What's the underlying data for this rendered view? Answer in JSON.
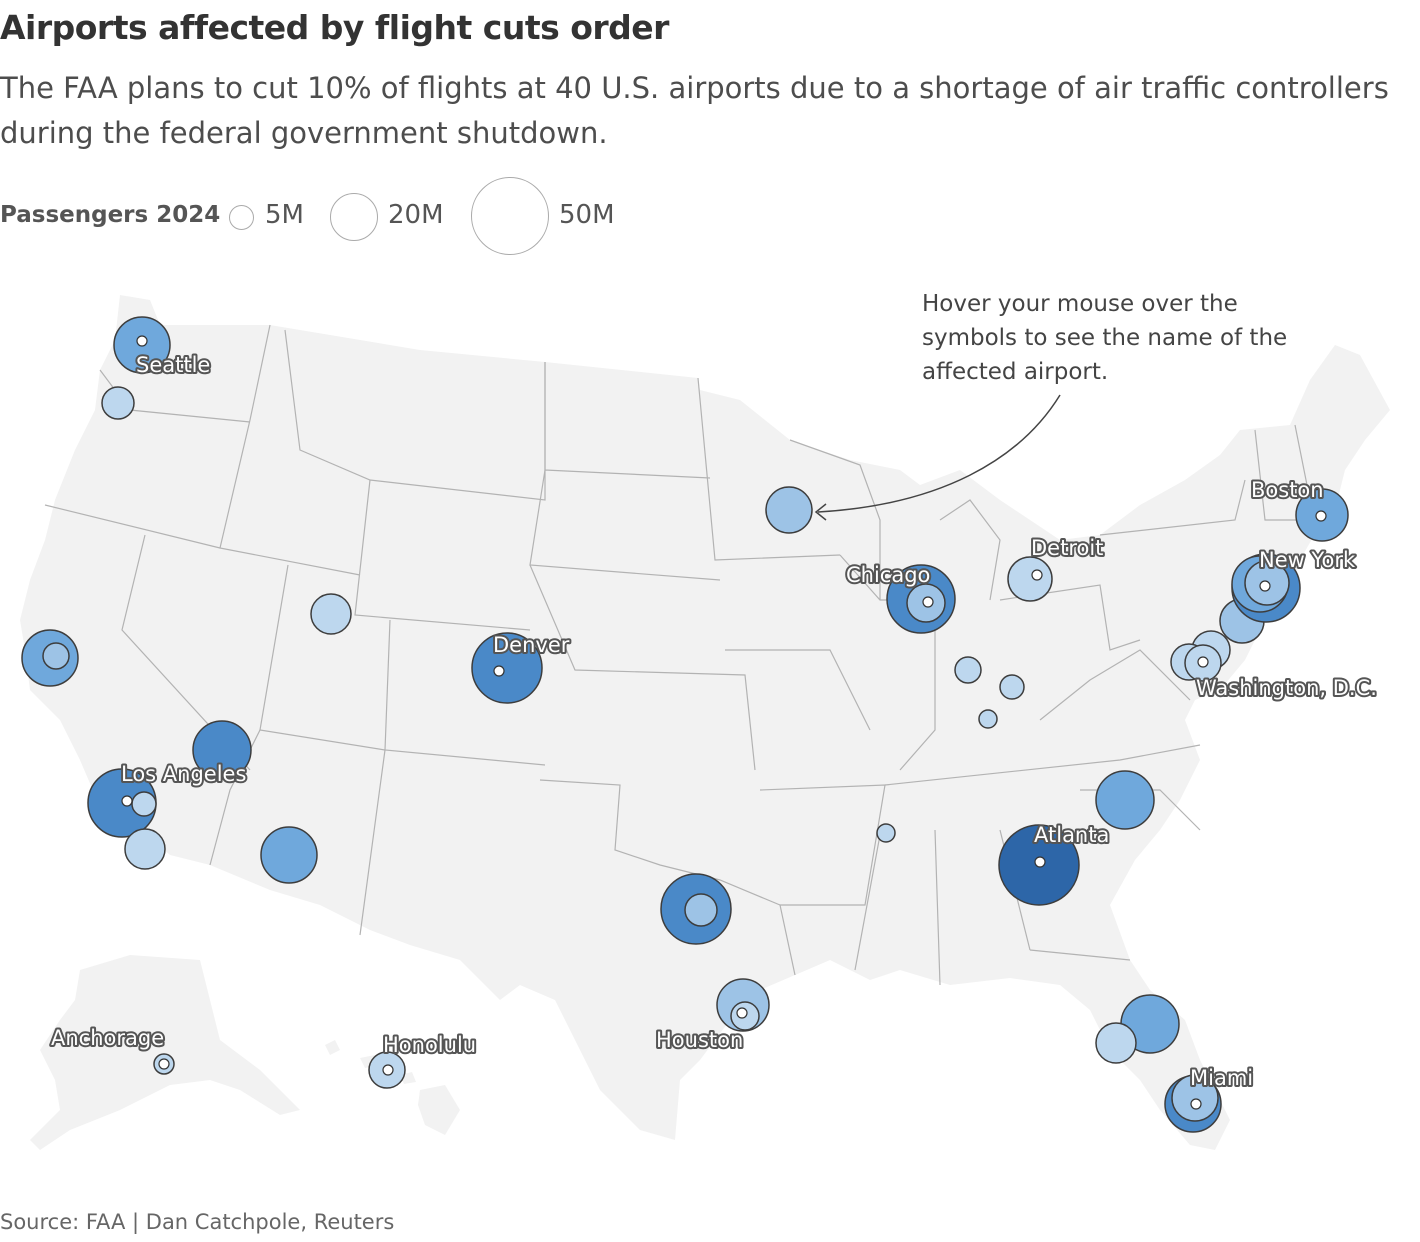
{
  "header": {
    "title": "Airports affected by flight cuts order",
    "subtitle": "The FAA plans to cut 10% of flights at 40 U.S. airports due to a shortage of air traffic controllers during the federal government shutdown."
  },
  "legend": {
    "title": "Passengers 2024",
    "items": [
      {
        "label": "5M",
        "value_millions": 5
      },
      {
        "label": "20M",
        "value_millions": 20
      },
      {
        "label": "50M",
        "value_millions": 50
      }
    ]
  },
  "annotation": {
    "text": "Hover your mouse over the symbols to see the name of the affected airport."
  },
  "source": "Source: FAA | Dan Catchpole, Reuters",
  "colors": {
    "land": "#f2f2f2",
    "border": "#b3b3b3",
    "level1": "#bdd7ee",
    "level2": "#9dc3e6",
    "level3": "#6fa8dc",
    "level4": "#4a89c8",
    "level5": "#2d66a8",
    "stroke": "#3d3d3d"
  },
  "city_labels": [
    {
      "name": "Seattle"
    },
    {
      "name": "Boston"
    },
    {
      "name": "New York"
    },
    {
      "name": "Detroit"
    },
    {
      "name": "Chicago"
    },
    {
      "name": "Denver"
    },
    {
      "name": "Washington, D.C."
    },
    {
      "name": "Los Angeles"
    },
    {
      "name": "Atlanta"
    },
    {
      "name": "Houston"
    },
    {
      "name": "Miami"
    },
    {
      "name": "Anchorage"
    },
    {
      "name": "Honolulu"
    }
  ]
}
